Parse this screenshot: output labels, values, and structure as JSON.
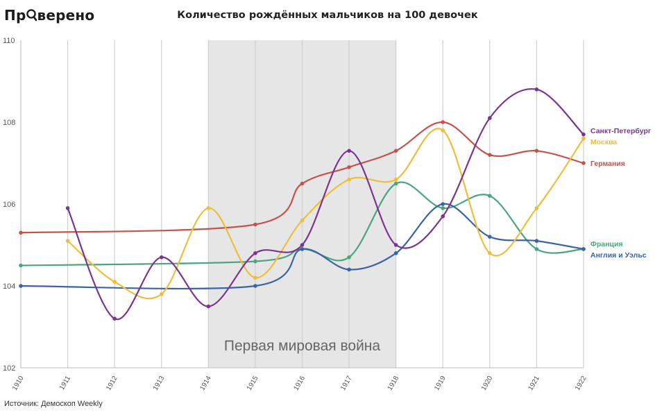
{
  "header": {
    "logo_pre": "Пр",
    "logo_post": "верено",
    "title": "Количество рождённых мальчиков на 100 девочек"
  },
  "footer": {
    "source": "Источник: Демоскоп Weekly"
  },
  "chart_data": {
    "type": "line",
    "title": "Количество рождённых мальчиков на 100 девочек",
    "xlabel": "",
    "ylabel": "",
    "x": [
      1910,
      1911,
      1912,
      1913,
      1914,
      1915,
      1916,
      1917,
      1918,
      1919,
      1920,
      1921,
      1922
    ],
    "x_tick_labels": [
      "1910",
      "1911",
      "1912",
      "1913",
      "1914",
      "1915",
      "1916",
      "1917",
      "1918",
      "1919",
      "1920",
      "1921",
      "1922"
    ],
    "y_ticks": [
      102,
      104,
      106,
      108,
      110
    ],
    "ylim": [
      102,
      110
    ],
    "grid": "vertical",
    "legend": "right-end labels",
    "shaded_region": {
      "from": 1914,
      "to": 1918,
      "label": "Первая мировая война",
      "color": "#e6e6e6"
    },
    "series": [
      {
        "name": "Германия",
        "color": "#c5534c",
        "values": [
          105.3,
          null,
          null,
          null,
          null,
          105.5,
          106.5,
          106.9,
          107.3,
          108.0,
          107.2,
          107.3,
          107.0
        ]
      },
      {
        "name": "Франция",
        "color": "#4aa57f",
        "values": [
          104.5,
          null,
          null,
          null,
          null,
          104.6,
          104.9,
          104.7,
          106.5,
          105.9,
          106.2,
          104.9,
          104.9
        ]
      },
      {
        "name": "Англия и Уэльс",
        "color": "#3a64a6",
        "values": [
          104.0,
          null,
          null,
          null,
          null,
          104.0,
          104.9,
          104.4,
          104.8,
          106.0,
          105.2,
          105.1,
          104.9
        ]
      },
      {
        "name": "Москва",
        "color": "#eebd3a",
        "values": [
          null,
          105.1,
          104.1,
          103.8,
          105.9,
          104.2,
          105.6,
          106.6,
          106.6,
          107.8,
          104.8,
          105.9,
          107.6
        ]
      },
      {
        "name": "Санкт-Петербург",
        "color": "#7a3590",
        "values": [
          null,
          105.9,
          103.2,
          104.7,
          103.5,
          104.8,
          105.0,
          107.3,
          105.0,
          105.7,
          108.1,
          108.8,
          107.7
        ]
      }
    ]
  }
}
